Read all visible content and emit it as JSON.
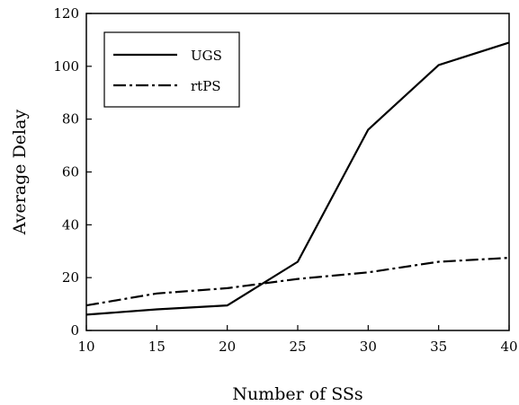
{
  "chart_data": {
    "type": "line",
    "title": "",
    "xlabel": "Number of SSs",
    "ylabel": "Average Delay",
    "x": [
      10,
      15,
      20,
      25,
      30,
      35,
      40
    ],
    "xlim": [
      10,
      40
    ],
    "ylim": [
      0,
      120
    ],
    "xticks": [
      10,
      15,
      20,
      25,
      30,
      35,
      40
    ],
    "yticks": [
      0,
      20,
      40,
      60,
      80,
      100,
      120
    ],
    "grid": false,
    "legend_position": "top-left",
    "series": [
      {
        "name": "UGS",
        "style": "solid",
        "color": "#000000",
        "values": [
          6,
          8,
          9.5,
          26,
          76,
          100.5,
          109
        ]
      },
      {
        "name": "rtPS",
        "style": "dashdot",
        "color": "#000000",
        "values": [
          9.5,
          14,
          16,
          19.5,
          22,
          26,
          27.5
        ]
      }
    ]
  }
}
